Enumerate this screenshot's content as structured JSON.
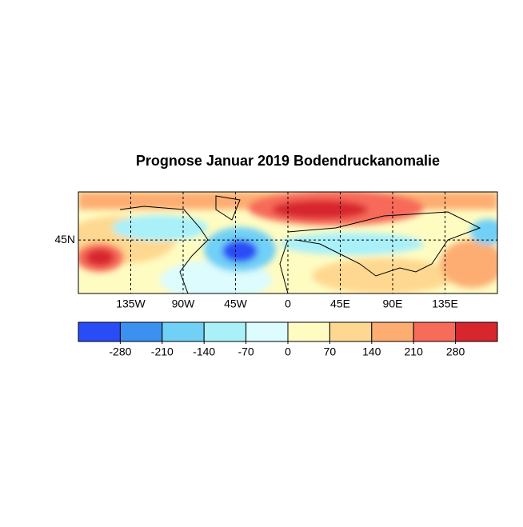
{
  "title": "Prognose Januar 2019 Bodendruckanomalie",
  "map": {
    "xlim": [
      -180,
      180
    ],
    "ylim": [
      -5,
      90
    ],
    "xticks": [
      {
        "value": -135,
        "label": "135W"
      },
      {
        "value": -90,
        "label": "90W"
      },
      {
        "value": -45,
        "label": "45W"
      },
      0,
      {
        "value": 45,
        "label": "45E"
      },
      {
        "value": 90,
        "label": "90E"
      },
      {
        "value": 135,
        "label": "135E"
      }
    ],
    "yticks": [
      {
        "value": 45,
        "label": "45N"
      }
    ],
    "grid": true
  },
  "colorbar": {
    "range": [
      -350,
      350
    ],
    "colors": [
      "#2a4cf6",
      "#3b90f0",
      "#70d0f6",
      "#a9f0f9",
      "#dcfcfd",
      "#fffcc2",
      "#fed890",
      "#fdad72",
      "#f76b5a",
      "#d8262f"
    ],
    "ticks": [
      -280,
      -210,
      -140,
      -70,
      0,
      70,
      140,
      210,
      280
    ]
  }
}
